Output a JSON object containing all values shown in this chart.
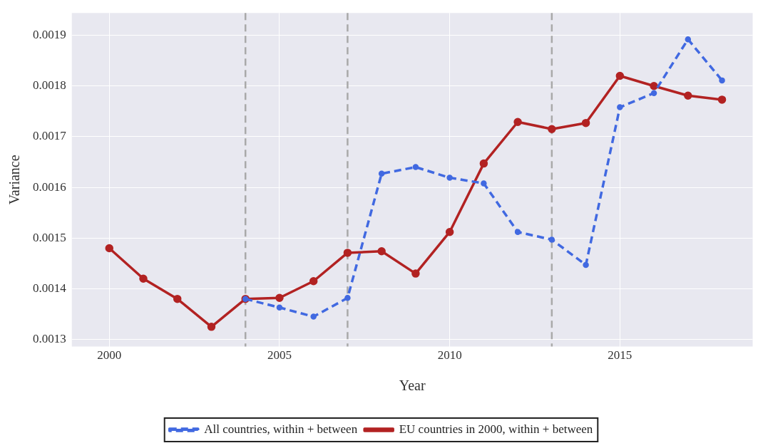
{
  "chart_data": {
    "type": "line",
    "xlabel": "Year",
    "ylabel": "Variance",
    "x": [
      2000,
      2001,
      2002,
      2003,
      2004,
      2005,
      2006,
      2007,
      2008,
      2009,
      2010,
      2011,
      2012,
      2013,
      2014,
      2015,
      2016,
      2017,
      2018
    ],
    "series": [
      {
        "name": "All countries, within + between",
        "color": "#4169e1",
        "line_style": "dashed",
        "values": [
          null,
          null,
          null,
          null,
          0.00138,
          0.001363,
          0.001345,
          0.001382,
          0.001627,
          0.00164,
          0.001619,
          0.001608,
          0.001512,
          0.001497,
          0.001447,
          0.001758,
          0.001786,
          0.001892,
          0.001811
        ]
      },
      {
        "name": "EU countries in 2000, within + between",
        "color": "#b22222",
        "line_style": "solid",
        "values": [
          0.00148,
          0.00142,
          0.00138,
          0.001325,
          0.00138,
          0.001382,
          0.001415,
          0.001471,
          0.001474,
          0.00143,
          0.001512,
          0.001647,
          0.001729,
          0.001715,
          0.001727,
          0.00182,
          0.0018,
          0.001781,
          0.001773
        ]
      }
    ],
    "xlim": [
      1998.9,
      2018.9
    ],
    "xticks": [
      2000,
      2005,
      2010,
      2015
    ],
    "ylim": [
      0.001286,
      0.001944
    ],
    "yticks": [
      0.0013,
      0.0014,
      0.0015,
      0.0016,
      0.0017,
      0.0018,
      0.0019
    ],
    "ref_lines": [
      {
        "axis": "x",
        "value": 2004,
        "color": "#a9a9a9",
        "line_style": "dashed"
      },
      {
        "axis": "x",
        "value": 2007,
        "color": "#a9a9a9",
        "line_style": "dashed"
      },
      {
        "axis": "x",
        "value": 2013,
        "color": "#a9a9a9",
        "line_style": "dashed"
      }
    ],
    "grid": true,
    "legend": "bottom",
    "marker": "circle"
  }
}
